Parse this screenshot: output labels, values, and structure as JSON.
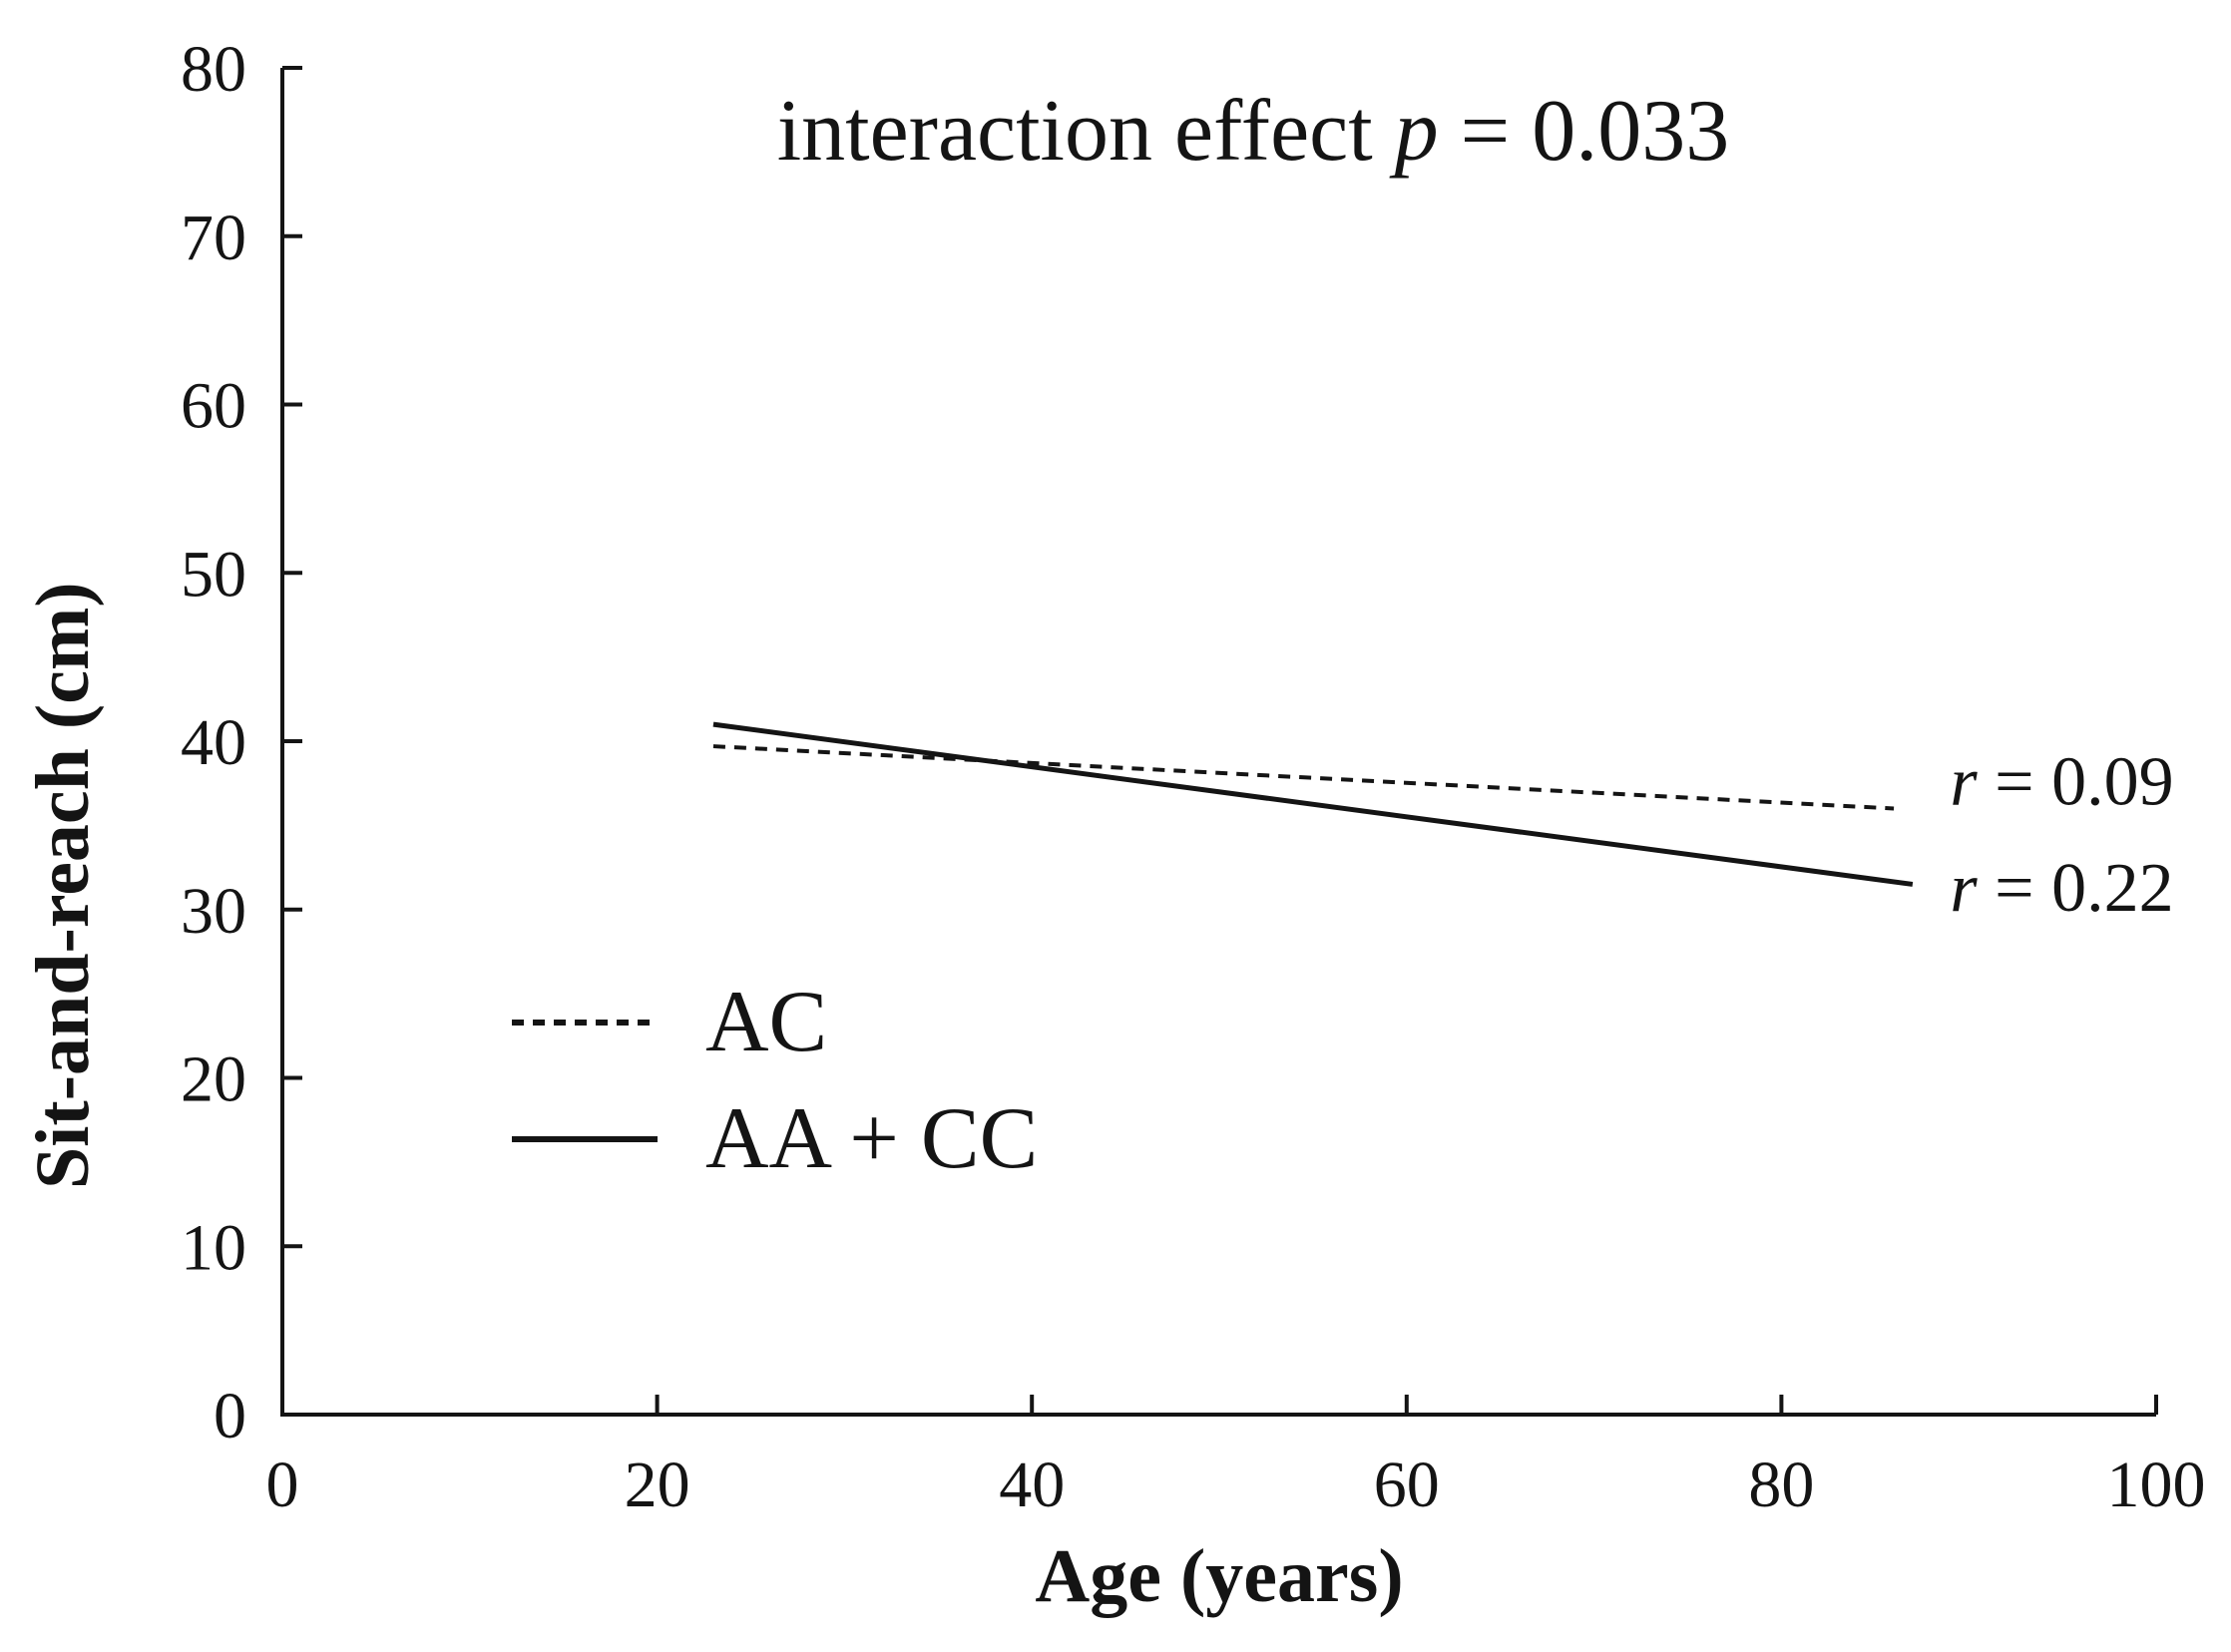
{
  "figure": {
    "title_parts": {
      "prefix": "interaction effect ",
      "italic": "p",
      "suffix": " = 0.033"
    }
  },
  "chart_data": {
    "type": "line",
    "title": "interaction effect p = 0.033",
    "xlabel": "Age (years)",
    "ylabel": "Sit-and-reach (cm)",
    "xlim": [
      0,
      100
    ],
    "ylim": [
      0,
      80
    ],
    "xticks": [
      0,
      20,
      40,
      60,
      80,
      100
    ],
    "yticks": [
      0,
      10,
      20,
      30,
      40,
      50,
      60,
      70,
      80
    ],
    "grid": false,
    "legend_position": "inside-lower-left",
    "line_color": "#141414",
    "series": [
      {
        "name": "AC",
        "line_style": "dashed",
        "r_label": "r = 0.09",
        "points": [
          [
            23,
            39.7
          ],
          [
            86,
            36.0
          ]
        ]
      },
      {
        "name": "AA + CC",
        "line_style": "solid",
        "r_label": "r = 0.22",
        "points": [
          [
            23,
            41.0
          ],
          [
            87,
            31.5
          ]
        ]
      }
    ],
    "annotations": [
      {
        "italic": "r",
        "text": " = 0.09",
        "x": 89,
        "y": 37.6
      },
      {
        "italic": "r",
        "text": " = 0.22",
        "x": 89,
        "y": 31.3
      }
    ]
  }
}
